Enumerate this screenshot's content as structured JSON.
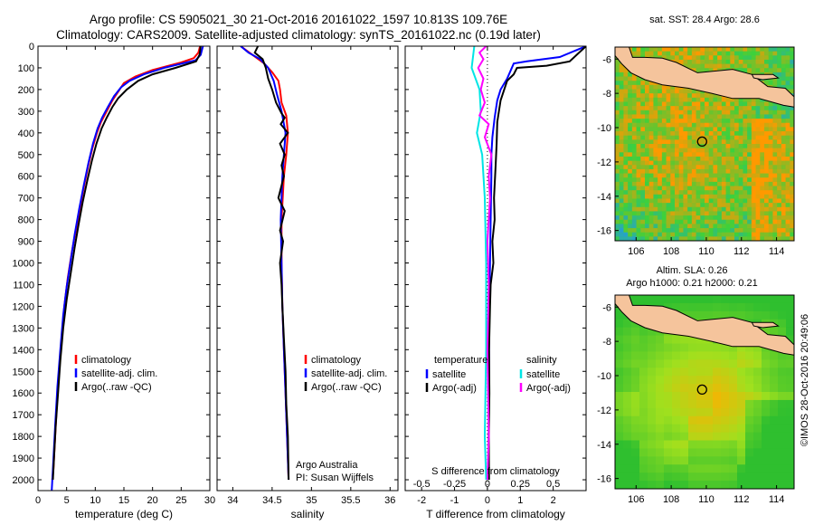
{
  "header": {
    "title_line1": "Argo profile: CS 5905021_30 21-Oct-2016 20161022_1597 10.813S 109.76E",
    "title_line2": "Climatology: CARS2009. Satellite-adjusted climatology: synTS_20161022.nc (0.19d later)"
  },
  "chart_data": [
    {
      "type": "line",
      "panel": "temperature",
      "xlabel": "temperature (deg C)",
      "ylabel": "",
      "xlim": [
        0,
        30
      ],
      "ylim": [
        2050,
        0
      ],
      "y_reversed": true,
      "xticks": [
        0,
        5,
        10,
        15,
        20,
        25,
        30
      ],
      "yticks": [
        0,
        100,
        200,
        300,
        400,
        500,
        600,
        700,
        800,
        900,
        1000,
        1100,
        1200,
        1300,
        1400,
        1500,
        1600,
        1700,
        1800,
        1900,
        2000
      ],
      "legend_position": "lower-center",
      "series": [
        {
          "name": "climatology",
          "color": "#ff0000",
          "points": [
            [
              28.3,
              0
            ],
            [
              28,
              30
            ],
            [
              27.2,
              55
            ],
            [
              25,
              75
            ],
            [
              20,
              110
            ],
            [
              17,
              140
            ],
            [
              15,
              170
            ],
            [
              14,
              210
            ],
            [
              13,
              250
            ],
            [
              12,
              300
            ],
            [
              11,
              350
            ],
            [
              10.3,
              400
            ],
            [
              9.5,
              470
            ],
            [
              8.8,
              550
            ],
            [
              8,
              650
            ],
            [
              7.3,
              750
            ],
            [
              6.6,
              850
            ],
            [
              5.9,
              950
            ],
            [
              5.2,
              1070
            ],
            [
              4.6,
              1200
            ],
            [
              4.1,
              1350
            ],
            [
              3.7,
              1500
            ],
            [
              3.3,
              1650
            ],
            [
              3,
              1800
            ],
            [
              2.7,
              1950
            ],
            [
              2.5,
              2000
            ]
          ]
        },
        {
          "name": "satellite-adj. clim.",
          "color": "#0000ff",
          "points": [
            [
              28.8,
              0
            ],
            [
              28.4,
              40
            ],
            [
              27.5,
              65
            ],
            [
              22,
              100
            ],
            [
              18.5,
              130
            ],
            [
              16,
              160
            ],
            [
              14.5,
              190
            ],
            [
              13.3,
              230
            ],
            [
              12.2,
              280
            ],
            [
              11.2,
              330
            ],
            [
              10.4,
              380
            ],
            [
              9.6,
              450
            ],
            [
              8.8,
              540
            ],
            [
              8,
              640
            ],
            [
              7.2,
              750
            ],
            [
              6.4,
              870
            ],
            [
              5.7,
              990
            ],
            [
              5,
              1110
            ],
            [
              4.4,
              1240
            ],
            [
              3.9,
              1400
            ],
            [
              3.4,
              1570
            ],
            [
              3,
              1750
            ],
            [
              2.6,
              1950
            ],
            [
              2.4,
              2050
            ]
          ]
        },
        {
          "name": "Argo(..raw -QC)",
          "color": "#000000",
          "points": [
            [
              28.4,
              0
            ],
            [
              28.2,
              40
            ],
            [
              27.6,
              70
            ],
            [
              24,
              100
            ],
            [
              20,
              130
            ],
            [
              17.5,
              160
            ],
            [
              15.5,
              200
            ],
            [
              14,
              240
            ],
            [
              13,
              280
            ],
            [
              12,
              330
            ],
            [
              11.1,
              380
            ],
            [
              10.2,
              450
            ],
            [
              9.4,
              530
            ],
            [
              8.6,
              620
            ],
            [
              7.8,
              720
            ],
            [
              7.1,
              820
            ],
            [
              6.4,
              930
            ],
            [
              5.7,
              1050
            ],
            [
              5,
              1170
            ],
            [
              4.4,
              1300
            ],
            [
              3.9,
              1450
            ],
            [
              3.5,
              1600
            ],
            [
              3.1,
              1750
            ],
            [
              2.8,
              1900
            ],
            [
              2.6,
              2000
            ]
          ]
        }
      ]
    },
    {
      "type": "line",
      "panel": "salinity",
      "xlabel": "salinity",
      "xlim": [
        33.8,
        36.1
      ],
      "ylim": [
        2050,
        0
      ],
      "y_reversed": true,
      "xticks": [
        34,
        34.5,
        35,
        35.5,
        36
      ],
      "legend_position": "lower-right",
      "annotation_line1": "Argo Australia",
      "annotation_line2": "PI: Susan Wijffels",
      "series": [
        {
          "name": "climatology",
          "color": "#ff0000",
          "points": [
            [
              34.1,
              0
            ],
            [
              34.25,
              40
            ],
            [
              34.4,
              80
            ],
            [
              34.5,
              120
            ],
            [
              34.58,
              160
            ],
            [
              34.6,
              200
            ],
            [
              34.62,
              260
            ],
            [
              34.68,
              320
            ],
            [
              34.7,
              400
            ],
            [
              34.68,
              500
            ],
            [
              34.65,
              600
            ],
            [
              34.62,
              800
            ],
            [
              34.62,
              1000
            ],
            [
              34.63,
              1200
            ],
            [
              34.65,
              1400
            ],
            [
              34.67,
              1600
            ],
            [
              34.69,
              1800
            ],
            [
              34.71,
              2000
            ]
          ]
        },
        {
          "name": "satellite-adj. clim.",
          "color": "#0000ff",
          "points": [
            [
              34.1,
              0
            ],
            [
              34.2,
              30
            ],
            [
              34.35,
              60
            ],
            [
              34.45,
              100
            ],
            [
              34.52,
              160
            ],
            [
              34.56,
              220
            ],
            [
              34.62,
              300
            ],
            [
              34.67,
              400
            ],
            [
              34.65,
              500
            ],
            [
              34.63,
              600
            ],
            [
              34.61,
              800
            ],
            [
              34.62,
              1000
            ],
            [
              34.63,
              1200
            ],
            [
              34.65,
              1400
            ],
            [
              34.67,
              1600
            ],
            [
              34.69,
              1800
            ],
            [
              34.71,
              2000
            ]
          ]
        },
        {
          "name": "Argo(..raw -QC)",
          "color": "#000000",
          "points": [
            [
              34.32,
              0
            ],
            [
              34.28,
              30
            ],
            [
              34.38,
              60
            ],
            [
              34.42,
              100
            ],
            [
              34.45,
              150
            ],
            [
              34.5,
              200
            ],
            [
              34.55,
              260
            ],
            [
              34.62,
              310
            ],
            [
              34.66,
              330
            ],
            [
              34.61,
              360
            ],
            [
              34.7,
              400
            ],
            [
              34.6,
              450
            ],
            [
              34.66,
              500
            ],
            [
              34.62,
              550
            ],
            [
              34.65,
              600
            ],
            [
              34.58,
              700
            ],
            [
              34.66,
              760
            ],
            [
              34.6,
              850
            ],
            [
              34.64,
              900
            ],
            [
              34.6,
              1000
            ],
            [
              34.62,
              1100
            ],
            [
              34.63,
              1200
            ],
            [
              34.65,
              1350
            ],
            [
              34.67,
              1500
            ],
            [
              34.68,
              1650
            ],
            [
              34.7,
              1800
            ],
            [
              34.71,
              2000
            ]
          ]
        }
      ]
    },
    {
      "type": "line",
      "panel": "differences",
      "xlabel": "T difference from climatology",
      "x2label": "S difference from climatology",
      "xlim": [
        -2.5,
        3
      ],
      "ylim": [
        2050,
        0
      ],
      "y_reversed": true,
      "xticks": [
        -2,
        -1,
        0,
        1,
        2
      ],
      "x2ticks": [
        -0.5,
        -0.25,
        0,
        0.25,
        0.5
      ],
      "x2tick_labels": [
        "-0.5",
        "-0.25",
        "0",
        "0.25",
        "0.5"
      ],
      "legend_left_title": "temperature",
      "legend_right_title": "salinity",
      "series": [
        {
          "name": "satellite",
          "group": "temperature",
          "color": "#0000ff",
          "points": [
            [
              3,
              0
            ],
            [
              2.2,
              50
            ],
            [
              1.2,
              70
            ],
            [
              0.8,
              80
            ],
            [
              0.6,
              150
            ],
            [
              0.4,
              200
            ],
            [
              0.3,
              250
            ],
            [
              0.22,
              330
            ],
            [
              0.18,
              380
            ],
            [
              0.15,
              420
            ],
            [
              0.12,
              500
            ],
            [
              0.12,
              600
            ],
            [
              0.1,
              800
            ],
            [
              0.08,
              1000
            ],
            [
              0.06,
              1200
            ],
            [
              0.05,
              1400
            ],
            [
              0.05,
              1600
            ],
            [
              0.04,
              1800
            ],
            [
              0.03,
              2000
            ]
          ]
        },
        {
          "name": "Argo(-adj)",
          "group": "temperature",
          "color": "#000000",
          "points": [
            [
              3,
              0
            ],
            [
              2.5,
              70
            ],
            [
              1.8,
              90
            ],
            [
              0.9,
              100
            ],
            [
              0.8,
              130
            ],
            [
              0.6,
              160
            ],
            [
              0.4,
              250
            ],
            [
              0.3,
              350
            ],
            [
              0.28,
              450
            ],
            [
              0.25,
              550
            ],
            [
              0.2,
              700
            ],
            [
              0.22,
              800
            ],
            [
              0.15,
              900
            ],
            [
              0.18,
              1000
            ],
            [
              0.1,
              1100
            ],
            [
              0.08,
              1200
            ],
            [
              0.05,
              1400
            ],
            [
              0.06,
              1600
            ],
            [
              0.04,
              1800
            ],
            [
              0.05,
              2000
            ]
          ]
        },
        {
          "name": "satellite",
          "group": "salinity",
          "color": "#00e5e5",
          "points": [
            [
              -0.1,
              0
            ],
            [
              -0.12,
              100
            ],
            [
              -0.06,
              200
            ],
            [
              -0.05,
              300
            ],
            [
              -0.08,
              400
            ],
            [
              -0.04,
              500
            ],
            [
              -0.02,
              700
            ],
            [
              -0.01,
              1000
            ],
            [
              -0.01,
              1400
            ],
            [
              -0.02,
              1800
            ],
            [
              -0.01,
              2000
            ]
          ]
        },
        {
          "name": "Argo(-adj)",
          "group": "salinity",
          "color": "#ff00ff",
          "points": [
            [
              -0.01,
              0
            ],
            [
              -0.06,
              30
            ],
            [
              -0.03,
              60
            ],
            [
              -0.07,
              100
            ],
            [
              -0.03,
              150
            ],
            [
              -0.05,
              200
            ],
            [
              -0.02,
              260
            ],
            [
              -0.06,
              320
            ],
            [
              0.01,
              360
            ],
            [
              -0.02,
              420
            ],
            [
              0.03,
              500
            ],
            [
              0.01,
              600
            ],
            [
              0.02,
              700
            ],
            [
              0,
              900
            ],
            [
              0.01,
              1100
            ],
            [
              0,
              1400
            ],
            [
              0.01,
              1800
            ],
            [
              0,
              2000
            ]
          ]
        }
      ]
    }
  ],
  "maps": [
    {
      "title": "sat. SST: 28.4  Argo: 28.6",
      "xticks": [
        106,
        108,
        110,
        112,
        114
      ],
      "yticks": [
        -6,
        -8,
        -10,
        -12,
        -14,
        -16
      ],
      "xlim": [
        104.8,
        115
      ],
      "ylim": [
        -16.6,
        -5.3
      ],
      "marker": [
        109.76,
        -10.813
      ],
      "field": "sst",
      "colors": {
        "low": "#1e90ff",
        "mid": "#3cd13c",
        "high": "#ff9900",
        "land": "#f5c49c"
      }
    },
    {
      "title_line1": "Altim. SLA: 0.26",
      "title_line2": "Argo h1000: 0.21  h2000: 0.21",
      "xticks": [
        106,
        108,
        110,
        112,
        114
      ],
      "yticks": [
        -6,
        -8,
        -10,
        -12,
        -14,
        -16
      ],
      "xlim": [
        104.8,
        115
      ],
      "ylim": [
        -16.6,
        -5.3
      ],
      "marker": [
        109.76,
        -10.813
      ],
      "field": "sla",
      "colors": {
        "low": "#2fbf2f",
        "mid": "#a0e01e",
        "high": "#ffb000",
        "land": "#f5c49c"
      }
    }
  ],
  "footer": {
    "credit": "©IMOS 28-Oct-2016 20:49:06"
  }
}
